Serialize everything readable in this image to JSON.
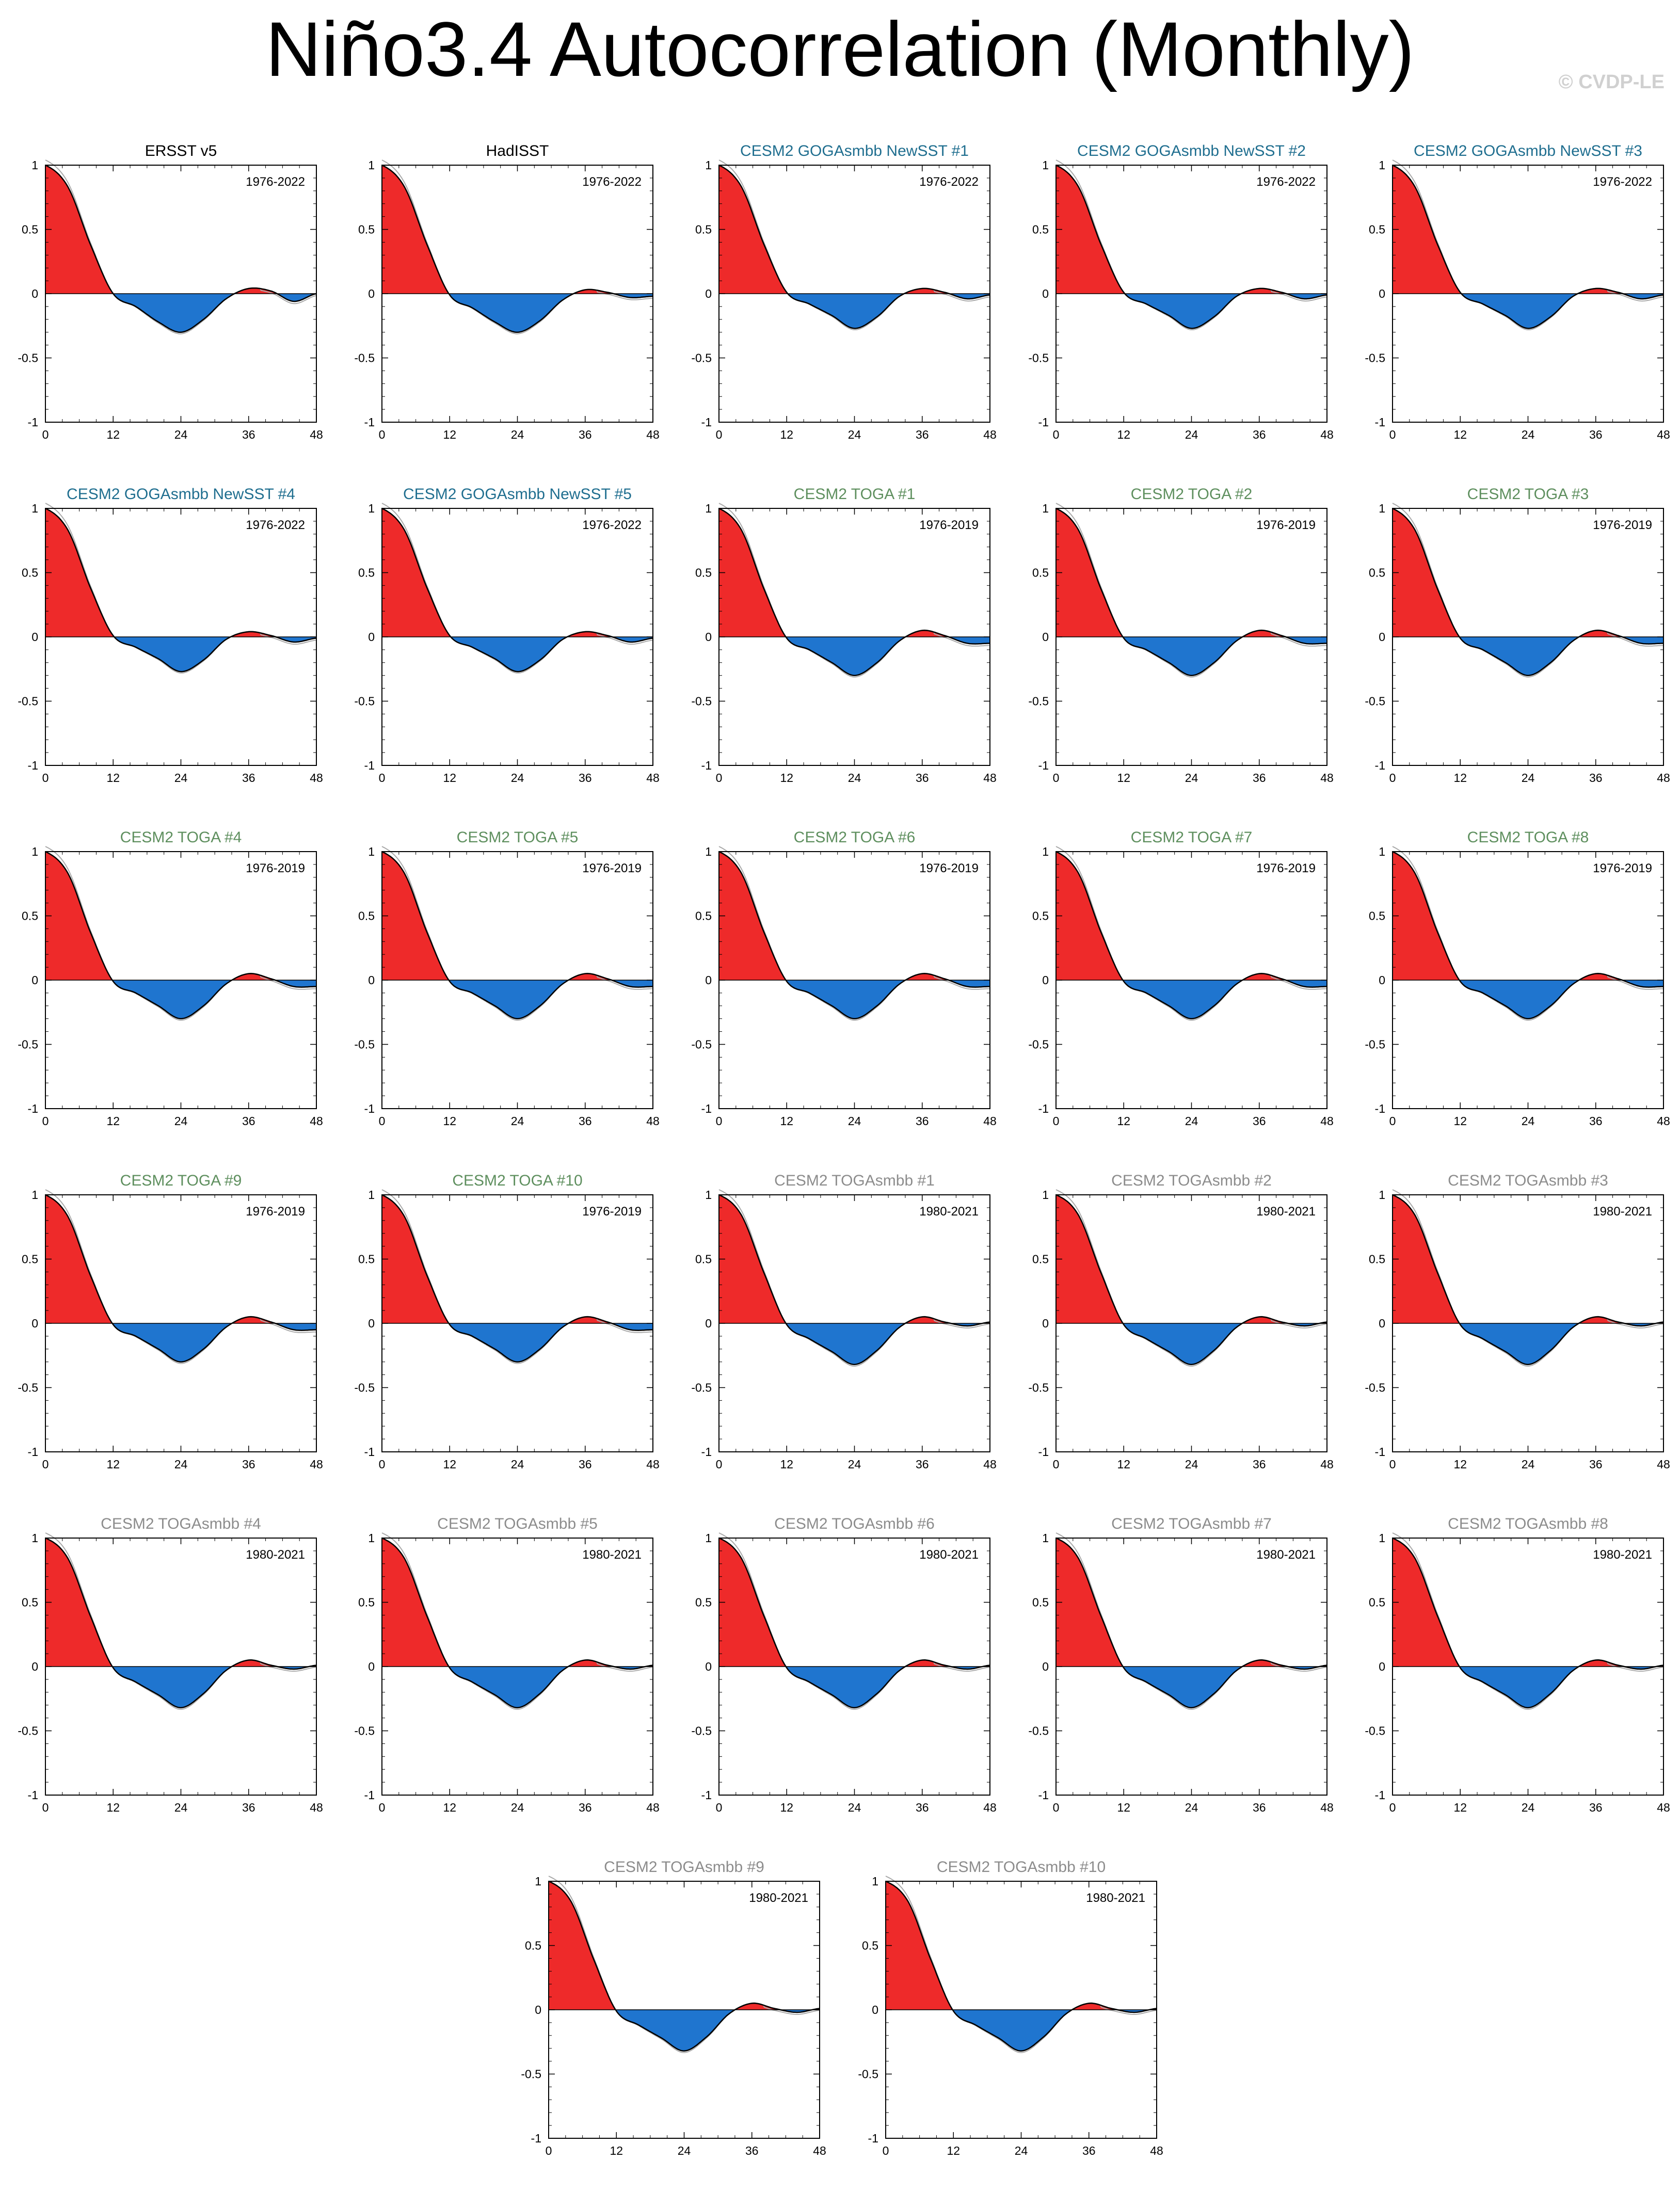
{
  "title": "Niño3.4 Autocorrelation (Monthly)",
  "copyright": "© CVDP-LE",
  "colors": {
    "positive_fill": "#ee2a2a",
    "negative_fill": "#1f75cf",
    "obs_title": "#000000",
    "gogasmbb_title": "#1f6e8f",
    "toga_title": "#5e8f5e",
    "togasmbb_title": "#8c8c8c",
    "ensemble_mean_line": "#aaaaaa"
  },
  "chart_data": {
    "type": "area",
    "xlabel": "",
    "ylabel": "",
    "x_ticks": [
      "0",
      "12",
      "24",
      "36",
      "48"
    ],
    "y_ticks": [
      "1",
      "0.5",
      "0",
      "-0.5",
      "-1"
    ],
    "xlim": [
      0,
      48
    ],
    "ylim": [
      -1,
      1
    ],
    "x_lag_months": [
      0,
      4,
      8,
      12,
      16,
      20,
      24,
      28,
      32,
      36,
      40,
      44,
      48
    ],
    "panels": [
      {
        "name": "ERSST v5",
        "group": "obs",
        "years": "1976-2022",
        "values": [
          1,
          0.83,
          0.38,
          0,
          -0.1,
          -0.22,
          -0.3,
          -0.2,
          -0.04,
          0.04,
          0.02,
          -0.06,
          0
        ]
      },
      {
        "name": "HadISST",
        "group": "obs",
        "years": "1976-2022",
        "values": [
          1,
          0.83,
          0.38,
          -0.01,
          -0.11,
          -0.22,
          -0.3,
          -0.21,
          -0.05,
          0.03,
          0.01,
          -0.03,
          -0.02
        ]
      },
      {
        "name": "CESM2 GOGAsmbb NewSST #1",
        "group": "gogasmbb",
        "years": "1976-2022",
        "values": [
          1,
          0.83,
          0.38,
          0.01,
          -0.08,
          -0.17,
          -0.27,
          -0.18,
          -0.02,
          0.04,
          0.01,
          -0.04,
          -0.01
        ]
      },
      {
        "name": "CESM2 GOGAsmbb NewSST #2",
        "group": "gogasmbb",
        "years": "1976-2022",
        "values": [
          1,
          0.83,
          0.38,
          0.01,
          -0.08,
          -0.17,
          -0.27,
          -0.18,
          -0.02,
          0.04,
          0.01,
          -0.04,
          -0.01
        ]
      },
      {
        "name": "CESM2 GOGAsmbb NewSST #3",
        "group": "gogasmbb",
        "years": "1976-2022",
        "values": [
          1,
          0.83,
          0.38,
          0.01,
          -0.08,
          -0.17,
          -0.27,
          -0.18,
          -0.02,
          0.04,
          0.01,
          -0.04,
          -0.01
        ]
      },
      {
        "name": "CESM2 GOGAsmbb NewSST #4",
        "group": "gogasmbb",
        "years": "1976-2022",
        "values": [
          1,
          0.83,
          0.38,
          0.01,
          -0.08,
          -0.17,
          -0.27,
          -0.18,
          -0.02,
          0.04,
          0.01,
          -0.04,
          -0.01
        ]
      },
      {
        "name": "CESM2 GOGAsmbb NewSST #5",
        "group": "gogasmbb",
        "years": "1976-2022",
        "values": [
          1,
          0.83,
          0.38,
          0.01,
          -0.08,
          -0.17,
          -0.27,
          -0.18,
          -0.02,
          0.04,
          0.01,
          -0.04,
          -0.01
        ]
      },
      {
        "name": "CESM2 TOGA #1",
        "group": "toga",
        "years": "1976-2019",
        "values": [
          1,
          0.83,
          0.37,
          -0.01,
          -0.1,
          -0.2,
          -0.3,
          -0.2,
          -0.03,
          0.05,
          0.01,
          -0.05,
          -0.05
        ]
      },
      {
        "name": "CESM2 TOGA #2",
        "group": "toga",
        "years": "1976-2019",
        "values": [
          1,
          0.83,
          0.37,
          -0.01,
          -0.1,
          -0.2,
          -0.3,
          -0.2,
          -0.03,
          0.05,
          0.01,
          -0.05,
          -0.05
        ]
      },
      {
        "name": "CESM2 TOGA #3",
        "group": "toga",
        "years": "1976-2019",
        "values": [
          1,
          0.83,
          0.37,
          -0.01,
          -0.1,
          -0.2,
          -0.3,
          -0.2,
          -0.03,
          0.05,
          0.01,
          -0.05,
          -0.05
        ]
      },
      {
        "name": "CESM2 TOGA #4",
        "group": "toga",
        "years": "1976-2019",
        "values": [
          1,
          0.83,
          0.37,
          -0.01,
          -0.1,
          -0.2,
          -0.3,
          -0.2,
          -0.03,
          0.05,
          0.01,
          -0.05,
          -0.05
        ]
      },
      {
        "name": "CESM2 TOGA #5",
        "group": "toga",
        "years": "1976-2019",
        "values": [
          1,
          0.83,
          0.37,
          -0.01,
          -0.1,
          -0.2,
          -0.3,
          -0.2,
          -0.03,
          0.05,
          0.01,
          -0.05,
          -0.05
        ]
      },
      {
        "name": "CESM2 TOGA #6",
        "group": "toga",
        "years": "1976-2019",
        "values": [
          1,
          0.83,
          0.37,
          -0.01,
          -0.1,
          -0.2,
          -0.3,
          -0.2,
          -0.03,
          0.05,
          0.01,
          -0.05,
          -0.05
        ]
      },
      {
        "name": "CESM2 TOGA #7",
        "group": "toga",
        "years": "1976-2019",
        "values": [
          1,
          0.83,
          0.37,
          -0.01,
          -0.1,
          -0.2,
          -0.3,
          -0.2,
          -0.03,
          0.05,
          0.01,
          -0.05,
          -0.05
        ]
      },
      {
        "name": "CESM2 TOGA #8",
        "group": "toga",
        "years": "1976-2019",
        "values": [
          1,
          0.83,
          0.37,
          -0.01,
          -0.1,
          -0.2,
          -0.3,
          -0.2,
          -0.03,
          0.05,
          0.01,
          -0.05,
          -0.05
        ]
      },
      {
        "name": "CESM2 TOGA #9",
        "group": "toga",
        "years": "1976-2019",
        "values": [
          1,
          0.83,
          0.37,
          -0.01,
          -0.1,
          -0.2,
          -0.3,
          -0.2,
          -0.03,
          0.05,
          0.01,
          -0.05,
          -0.05
        ]
      },
      {
        "name": "CESM2 TOGA #10",
        "group": "toga",
        "years": "1976-2019",
        "values": [
          1,
          0.83,
          0.37,
          -0.01,
          -0.1,
          -0.2,
          -0.3,
          -0.2,
          -0.03,
          0.05,
          0.01,
          -0.05,
          -0.05
        ]
      },
      {
        "name": "CESM2 TOGAsmbb #1",
        "group": "togasmbb",
        "years": "1980-2021",
        "values": [
          1,
          0.84,
          0.39,
          -0.01,
          -0.12,
          -0.22,
          -0.32,
          -0.21,
          -0.03,
          0.05,
          0.01,
          -0.02,
          0.01
        ]
      },
      {
        "name": "CESM2 TOGAsmbb #2",
        "group": "togasmbb",
        "years": "1980-2021",
        "values": [
          1,
          0.84,
          0.39,
          -0.01,
          -0.12,
          -0.22,
          -0.32,
          -0.21,
          -0.03,
          0.05,
          0.01,
          -0.02,
          0.01
        ]
      },
      {
        "name": "CESM2 TOGAsmbb #3",
        "group": "togasmbb",
        "years": "1980-2021",
        "values": [
          1,
          0.84,
          0.39,
          -0.01,
          -0.12,
          -0.22,
          -0.32,
          -0.21,
          -0.03,
          0.05,
          0.01,
          -0.02,
          0.01
        ]
      },
      {
        "name": "CESM2 TOGAsmbb #4",
        "group": "togasmbb",
        "years": "1980-2021",
        "values": [
          1,
          0.84,
          0.39,
          -0.01,
          -0.12,
          -0.22,
          -0.32,
          -0.21,
          -0.03,
          0.05,
          0.01,
          -0.02,
          0.01
        ]
      },
      {
        "name": "CESM2 TOGAsmbb #5",
        "group": "togasmbb",
        "years": "1980-2021",
        "values": [
          1,
          0.84,
          0.39,
          -0.01,
          -0.12,
          -0.22,
          -0.32,
          -0.21,
          -0.03,
          0.05,
          0.01,
          -0.02,
          0.01
        ]
      },
      {
        "name": "CESM2 TOGAsmbb #6",
        "group": "togasmbb",
        "years": "1980-2021",
        "values": [
          1,
          0.84,
          0.39,
          -0.01,
          -0.12,
          -0.22,
          -0.32,
          -0.21,
          -0.03,
          0.05,
          0.01,
          -0.02,
          0.01
        ]
      },
      {
        "name": "CESM2 TOGAsmbb #7",
        "group": "togasmbb",
        "years": "1980-2021",
        "values": [
          1,
          0.84,
          0.39,
          -0.01,
          -0.12,
          -0.22,
          -0.32,
          -0.21,
          -0.03,
          0.05,
          0.01,
          -0.02,
          0.01
        ]
      },
      {
        "name": "CESM2 TOGAsmbb #8",
        "group": "togasmbb",
        "years": "1980-2021",
        "values": [
          1,
          0.84,
          0.39,
          -0.01,
          -0.12,
          -0.22,
          -0.32,
          -0.21,
          -0.03,
          0.05,
          0.01,
          -0.02,
          0.01
        ]
      },
      {
        "name": "CESM2 TOGAsmbb #9",
        "group": "togasmbb",
        "years": "1980-2021",
        "values": [
          1,
          0.84,
          0.39,
          -0.01,
          -0.12,
          -0.22,
          -0.32,
          -0.21,
          -0.03,
          0.05,
          0.01,
          -0.02,
          0.01
        ]
      },
      {
        "name": "CESM2 TOGAsmbb #10",
        "group": "togasmbb",
        "years": "1980-2021",
        "values": [
          1,
          0.84,
          0.39,
          -0.01,
          -0.12,
          -0.22,
          -0.32,
          -0.21,
          -0.03,
          0.05,
          0.01,
          -0.02,
          0.01
        ]
      }
    ]
  }
}
